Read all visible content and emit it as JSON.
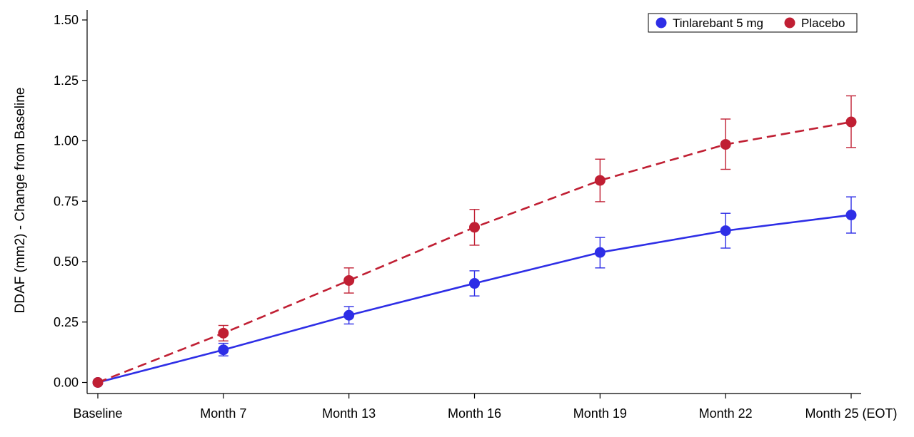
{
  "chart_data": {
    "type": "line",
    "title": "",
    "xlabel": "",
    "ylabel": "DDAF (mm2) - Change from Baseline",
    "categories": [
      "Baseline",
      "Month 7",
      "Month 13",
      "Month 16",
      "Month 19",
      "Month 22",
      "Month 25 (EOT)"
    ],
    "ylim": [
      0,
      1.5
    ],
    "yticks": [
      "0.00",
      "0.25",
      "0.50",
      "0.75",
      "1.00",
      "1.25",
      "1.50"
    ],
    "ytick_values": [
      0,
      0.25,
      0.5,
      0.75,
      1.0,
      1.25,
      1.5
    ],
    "grid": false,
    "legend_position": "top-right",
    "error_bars": true,
    "series": [
      {
        "name": "Tinlarebant 5 mg",
        "color": "#2e2ee6",
        "line_style": "solid",
        "values": [
          0.0,
          0.135,
          0.278,
          0.41,
          0.538,
          0.628,
          0.693
        ],
        "error_low": [
          0.0,
          0.11,
          0.242,
          0.358,
          0.474,
          0.556,
          0.618
        ],
        "error_high": [
          0.0,
          0.162,
          0.314,
          0.462,
          0.6,
          0.7,
          0.768
        ]
      },
      {
        "name": "Placebo",
        "color": "#c01f33",
        "line_style": "dashed",
        "values": [
          0.0,
          0.204,
          0.422,
          0.642,
          0.836,
          0.985,
          1.078
        ],
        "error_low": [
          0.0,
          0.172,
          0.37,
          0.568,
          0.748,
          0.882,
          0.972
        ],
        "error_high": [
          0.0,
          0.236,
          0.474,
          0.716,
          0.924,
          1.09,
          1.186
        ]
      }
    ]
  }
}
